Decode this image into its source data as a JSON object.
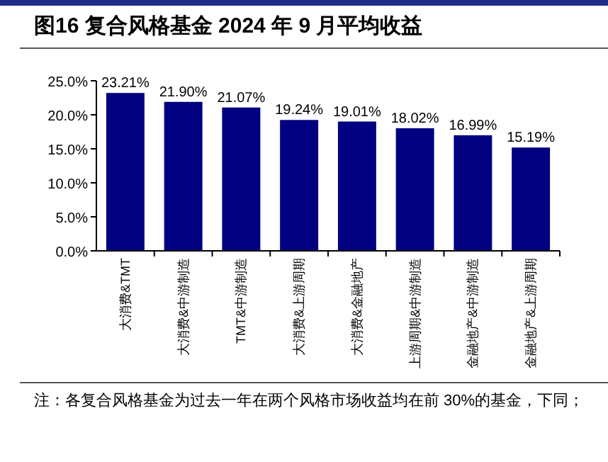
{
  "chart_data": {
    "type": "bar",
    "title": "图16 复合风格基金 2024 年 9 月平均收益",
    "categories": [
      "大消费&TMT",
      "大消费&中游制造",
      "TMT&中游制造",
      "大消费&上游周期",
      "大消费&金融地产",
      "上游周期&中游制造",
      "金融地产&中游制造",
      "金融地产&上游周期"
    ],
    "values": [
      23.21,
      21.9,
      21.07,
      19.24,
      19.01,
      18.02,
      16.99,
      15.19
    ],
    "value_labels": [
      "23.21%",
      "21.90%",
      "21.07%",
      "19.24%",
      "19.01%",
      "18.02%",
      "16.99%",
      "15.19%"
    ],
    "color": "#000080",
    "ylim": [
      0,
      25
    ],
    "yticks": [
      {
        "value": 0,
        "label": "0.0%"
      },
      {
        "value": 5,
        "label": "5.0%"
      },
      {
        "value": 10,
        "label": "10.0%"
      },
      {
        "value": 15,
        "label": "15.0%"
      },
      {
        "value": 20,
        "label": "20.0%"
      },
      {
        "value": 25,
        "label": "25.0%"
      }
    ],
    "grid": false,
    "annotations": [
      "注：各复合风格基金为过去一年在两个风格市场收益均在前 30%的基金，下同；"
    ]
  }
}
